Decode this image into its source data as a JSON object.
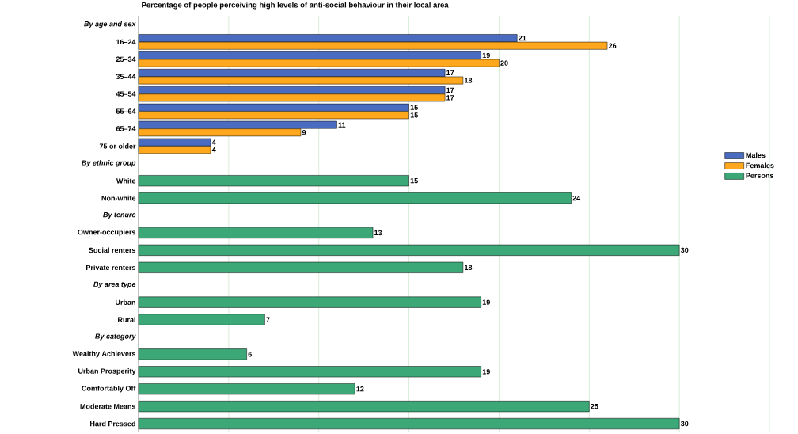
{
  "chart_data": {
    "type": "bar",
    "orientation": "horizontal",
    "title": "Percentage of people perceiving high levels of anti-social behaviour in their local area",
    "categories": [
      "By age and sex",
      "16–24",
      "25–34",
      "35–44",
      "45–54",
      "55–64",
      "65–74",
      "75 or older",
      "By ethnic group",
      "White",
      "Non-white",
      "By tenure",
      "Owner-occupiers",
      "Social renters",
      "Private renters",
      "By area type",
      "Urban",
      "Rural",
      "By category",
      "Wealthy Achievers",
      "Urban Prosperity",
      "Comfortably Off",
      "Moderate Means",
      "Hard Pressed"
    ],
    "series": [
      {
        "name": "Males",
        "color": "#4a6cc0",
        "values": [
          null,
          21,
          19,
          17,
          17,
          15,
          11,
          4,
          null,
          null,
          null,
          null,
          null,
          null,
          null,
          null,
          null,
          null,
          null,
          null,
          null,
          null,
          null,
          null
        ]
      },
      {
        "name": "Females",
        "color": "#ffa81e",
        "values": [
          null,
          26,
          20,
          18,
          17,
          15,
          9,
          4,
          null,
          null,
          null,
          null,
          null,
          null,
          null,
          null,
          null,
          null,
          null,
          null,
          null,
          null,
          null,
          null
        ]
      },
      {
        "name": "Persons",
        "color": "#3ca878",
        "values": [
          null,
          null,
          null,
          null,
          null,
          null,
          null,
          null,
          null,
          15,
          24,
          null,
          13,
          30,
          18,
          null,
          19,
          7,
          null,
          6,
          19,
          12,
          25,
          30
        ]
      }
    ],
    "xlim": [
      0,
      35
    ],
    "xticks": [
      {
        "value": 0,
        "label": null
      },
      {
        "value": 5,
        "label": null
      },
      {
        "value": 10,
        "label": null
      },
      {
        "value": 15,
        "label": null
      },
      {
        "value": 20,
        "label": null
      },
      {
        "value": 25,
        "label": null
      },
      {
        "value": 30,
        "label": null
      },
      {
        "value": 35,
        "label": null
      }
    ],
    "grid": "x",
    "legend": "right",
    "data_labels": true,
    "tick_labels": "y"
  }
}
